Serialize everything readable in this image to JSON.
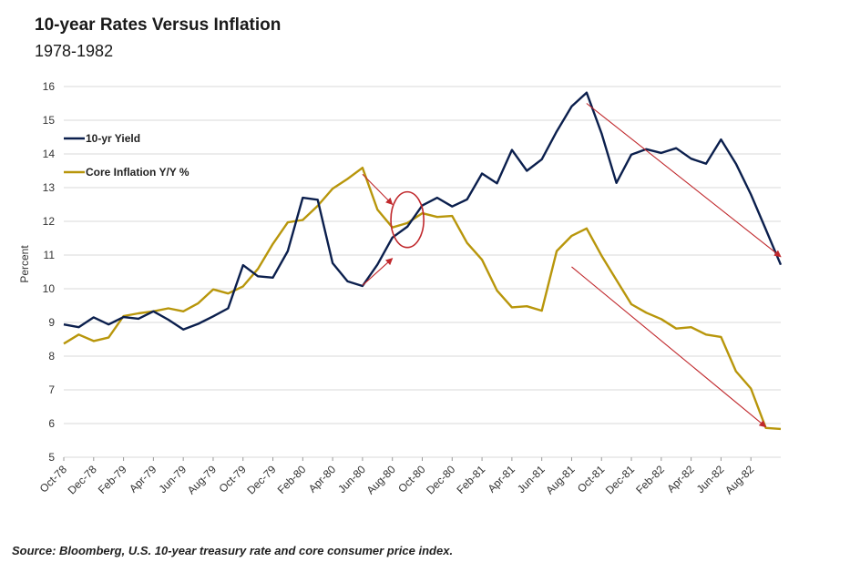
{
  "title": "10-year Rates Versus Inflation",
  "subtitle": "1978-1982",
  "source": "Source: Bloomberg, U.S. 10-year treasury rate and core consumer price index.",
  "colors": {
    "yield": "#0b1f4d",
    "inflation": "#b8960b",
    "annotation": "#c0282c",
    "grid": "#d9d9d9"
  },
  "chart_data": {
    "type": "line",
    "title": "10-year Rates Versus Inflation",
    "subtitle": "1978-1982",
    "ylabel": "Percent",
    "xlabel": "",
    "ylim": [
      5,
      16
    ],
    "yticks": [
      5,
      6,
      7,
      8,
      9,
      10,
      11,
      12,
      13,
      14,
      15,
      16
    ],
    "grid": "horizontal",
    "legend": "top-left",
    "x": [
      "Oct-78",
      "Nov-78",
      "Dec-78",
      "Jan-79",
      "Feb-79",
      "Mar-79",
      "Apr-79",
      "May-79",
      "Jun-79",
      "Jul-79",
      "Aug-79",
      "Sep-79",
      "Oct-79",
      "Nov-79",
      "Dec-79",
      "Jan-80",
      "Feb-80",
      "Mar-80",
      "Apr-80",
      "May-80",
      "Jun-80",
      "Jul-80",
      "Aug-80",
      "Sep-80",
      "Oct-80",
      "Nov-80",
      "Dec-80",
      "Jan-81",
      "Feb-81",
      "Mar-81",
      "Apr-81",
      "May-81",
      "Jun-81",
      "Jul-81",
      "Aug-81",
      "Sep-81",
      "Oct-81",
      "Nov-81",
      "Dec-81",
      "Jan-82",
      "Feb-82",
      "Mar-82",
      "Apr-82",
      "May-82",
      "Jun-82",
      "Jul-82",
      "Aug-82",
      "Sep-82",
      "Oct-82"
    ],
    "xtick_labels": [
      "Oct-78",
      "Dec-78",
      "Feb-79",
      "Apr-79",
      "Jun-79",
      "Aug-79",
      "Oct-79",
      "Dec-79",
      "Feb-80",
      "Apr-80",
      "Jun-80",
      "Aug-80",
      "Oct-80",
      "Dec-80",
      "Feb-81",
      "Apr-81",
      "Jun-81",
      "Aug-81",
      "Oct-81",
      "Dec-81",
      "Feb-82",
      "Apr-82",
      "Jun-82",
      "Aug-82"
    ],
    "series": [
      {
        "name": "10-yr Yield",
        "values": [
          8.94,
          8.86,
          9.15,
          8.94,
          9.16,
          9.11,
          9.33,
          9.08,
          8.79,
          8.96,
          9.18,
          9.42,
          10.7,
          10.37,
          10.33,
          11.12,
          12.7,
          12.64,
          10.76,
          10.22,
          10.08,
          10.72,
          11.52,
          11.84,
          12.47,
          12.7,
          12.44,
          12.65,
          13.42,
          13.13,
          14.12,
          13.5,
          13.84,
          14.67,
          15.41,
          15.82,
          14.61,
          13.14,
          13.98,
          14.14,
          14.03,
          14.17,
          13.86,
          13.71,
          14.43,
          13.71,
          12.8,
          11.76,
          10.71
        ]
      },
      {
        "name": "Core Inflation Y/Y %",
        "values": [
          8.37,
          8.64,
          8.45,
          8.55,
          9.19,
          9.27,
          9.33,
          9.42,
          9.33,
          9.57,
          9.98,
          9.86,
          10.07,
          10.59,
          11.33,
          11.97,
          12.04,
          12.46,
          12.97,
          13.26,
          13.59,
          12.35,
          11.82,
          11.95,
          12.24,
          12.13,
          12.16,
          11.36,
          10.86,
          9.95,
          9.45,
          9.48,
          9.35,
          11.12,
          11.57,
          11.79,
          10.98,
          10.26,
          9.54,
          9.29,
          9.1,
          8.82,
          8.86,
          8.64,
          8.57,
          7.55,
          7.04,
          5.87,
          5.84
        ]
      }
    ],
    "annotations": [
      {
        "type": "arrow",
        "from": [
          "Jun-80",
          13.4
        ],
        "to": [
          "Aug-80",
          12.5
        ]
      },
      {
        "type": "arrow",
        "from": [
          "Jun-80",
          10.1
        ],
        "to": [
          "Aug-80",
          10.9
        ]
      },
      {
        "type": "ellipse",
        "center": [
          "Sep-80",
          12.05
        ],
        "width_months": 2.2,
        "height_pct": 1.65
      },
      {
        "type": "arrow",
        "from": [
          "Sep-81",
          15.5
        ],
        "to": [
          "Oct-82",
          10.95
        ]
      },
      {
        "type": "arrow",
        "from": [
          "Aug-81",
          10.65
        ],
        "to": [
          "Sep-82",
          5.9
        ]
      }
    ]
  }
}
